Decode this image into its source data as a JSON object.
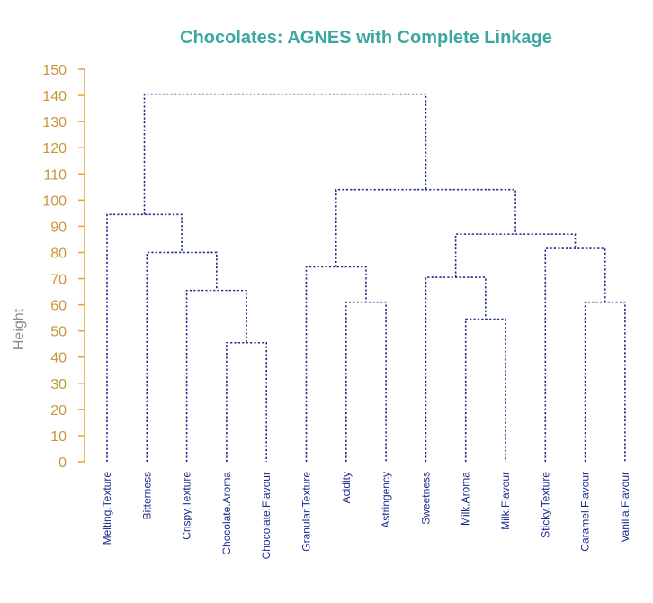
{
  "chart_data": {
    "type": "dendrogram",
    "title": "Chocolates: AGNES with Complete Linkage",
    "ylabel": "Height",
    "ylim": [
      0,
      150
    ],
    "yticks": [
      0,
      10,
      20,
      30,
      40,
      50,
      60,
      70,
      80,
      90,
      100,
      110,
      120,
      130,
      140,
      150
    ],
    "leaves": [
      "Melting.Texture",
      "Bitterness",
      "Crispy.Texture",
      "Chocolate.Aroma",
      "Chocolate.Flavour",
      "Granular.Texture",
      "Acidity",
      "Astringency",
      "Sweetness",
      "Milk.Aroma",
      "Milk.Flavour",
      "Sticky.Texture",
      "Caramel.Flavour",
      "Vanilla.Flavour"
    ],
    "merges": [
      {
        "id": "m1",
        "left": "Chocolate.Aroma",
        "right": "Chocolate.Flavour",
        "height": 45.5
      },
      {
        "id": "m2",
        "left": "Crispy.Texture",
        "right": "m1",
        "height": 65.5
      },
      {
        "id": "m3",
        "left": "Bitterness",
        "right": "m2",
        "height": 80
      },
      {
        "id": "m4",
        "left": "Melting.Texture",
        "right": "m3",
        "height": 94.5
      },
      {
        "id": "m5",
        "left": "Acidity",
        "right": "Astringency",
        "height": 61
      },
      {
        "id": "m6",
        "left": "Granular.Texture",
        "right": "m5",
        "height": 74.5
      },
      {
        "id": "m7",
        "left": "Milk.Aroma",
        "right": "Milk.Flavour",
        "height": 54.5
      },
      {
        "id": "m8",
        "left": "Sweetness",
        "right": "m7",
        "height": 70.5
      },
      {
        "id": "m9",
        "left": "Caramel.Flavour",
        "right": "Vanilla.Flavour",
        "height": 61
      },
      {
        "id": "m10",
        "left": "Sticky.Texture",
        "right": "m9",
        "height": 81.5
      },
      {
        "id": "m11",
        "left": "m8",
        "right": "m10",
        "height": 87
      },
      {
        "id": "m12",
        "left": "m6",
        "right": "m11",
        "height": 104
      },
      {
        "id": "m13",
        "left": "m4",
        "right": "m12",
        "height": 140.5
      }
    ],
    "colors": {
      "title": "#3aa8a0",
      "branches": "#1b2a8c",
      "axis": "#e8a040",
      "tick_labels": "#c8963c",
      "axis_label": "#8c8c8c",
      "leaf_labels": "#1b2a8c"
    },
    "grid": false,
    "legend": "none"
  }
}
